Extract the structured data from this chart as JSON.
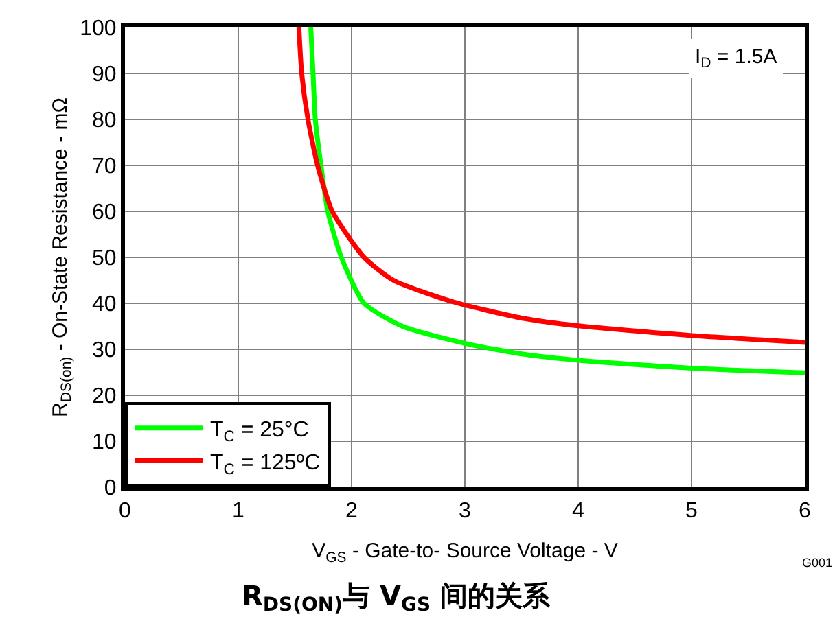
{
  "chart_data": {
    "type": "line",
    "title": "R$_{DS(ON)}$与 V$_{GS}$ 间的关系",
    "xlabel": "V$_{GS}$ - Gate-to- Source Voltage - V",
    "ylabel": "R$_{DS(on)}$ - On-State Resistance - mΩ",
    "xlim": [
      0,
      6
    ],
    "ylim": [
      0,
      100
    ],
    "xticks": [
      0,
      1,
      2,
      3,
      4,
      5,
      6
    ],
    "yticks": [
      0,
      10,
      20,
      30,
      40,
      50,
      60,
      70,
      80,
      90,
      100
    ],
    "grid": true,
    "legend": "bottom left",
    "marker": "none",
    "line_style": "solid",
    "series": [
      {
        "name": "T$_{C}$ = 25°C",
        "color": "#00ff00",
        "x": [
          1.64,
          1.66,
          1.68,
          1.73,
          1.79,
          1.91,
          2.11,
          2.45,
          3.0,
          3.5,
          4.0,
          5.0,
          6.0
        ],
        "values": [
          100,
          90,
          80,
          70,
          60,
          50,
          40,
          35,
          31.3,
          29.0,
          27.6,
          25.9,
          24.9
        ]
      },
      {
        "name": "T$_{C}$ = 125ºC",
        "color": "#ff0000",
        "x": [
          1.535,
          1.56,
          1.615,
          1.7,
          1.83,
          2.11,
          2.37,
          2.9,
          3.5,
          4.0,
          5.0,
          6.0
        ],
        "values": [
          100,
          90,
          80,
          70,
          60,
          50,
          45,
          40.3,
          36.8,
          35.1,
          33.0,
          31.5
        ]
      }
    ],
    "annotations": [
      "I$_{D}$ = 1.5A",
      "G001"
    ]
  }
}
